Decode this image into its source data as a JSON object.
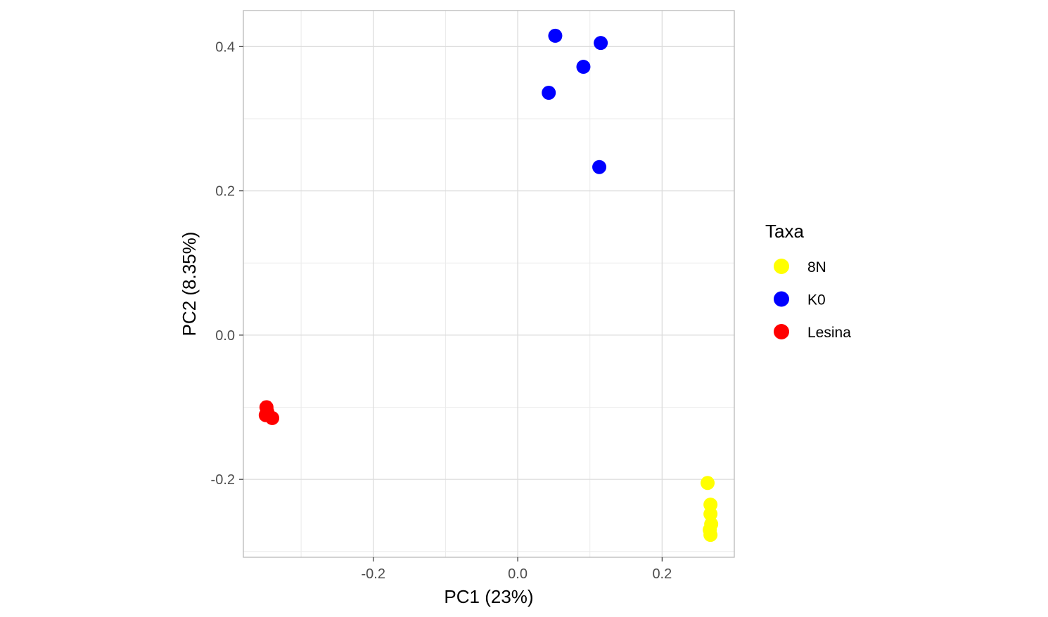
{
  "chart_data": {
    "type": "scatter",
    "title": "",
    "xlabel": "PC1 (23%)",
    "ylabel": "PC2 (8.35%)",
    "xlim": [
      -0.38,
      0.3
    ],
    "ylim": [
      -0.308,
      0.45
    ],
    "x_ticks": [
      -0.2,
      0.0,
      0.2
    ],
    "x_tick_labels": [
      "-0.2",
      "0.0",
      "0.2"
    ],
    "x_minor_ticks": [
      -0.3,
      -0.1,
      0.1
    ],
    "y_ticks": [
      -0.2,
      0.0,
      0.2,
      0.4
    ],
    "y_tick_labels": [
      "-0.2",
      "0.0",
      "0.2",
      "0.4"
    ],
    "y_minor_ticks": [
      -0.3,
      -0.1,
      0.1,
      0.3
    ],
    "grid": true,
    "legend": {
      "title": "Taxa",
      "position": "right"
    },
    "series": [
      {
        "name": "8N",
        "color": "#FFFF00",
        "x": [
          0.263,
          0.267,
          0.267,
          0.268,
          0.266,
          0.267
        ],
        "y": [
          -0.205,
          -0.235,
          -0.248,
          -0.262,
          -0.27,
          -0.277
        ]
      },
      {
        "name": "K0",
        "color": "#0000FF",
        "x": [
          0.052,
          0.115,
          0.091,
          0.043,
          0.113
        ],
        "y": [
          0.415,
          0.405,
          0.372,
          0.336,
          0.233
        ]
      },
      {
        "name": "Lesina",
        "color": "#FF0000",
        "x": [
          -0.348,
          -0.347,
          -0.349,
          -0.34
        ],
        "y": [
          -0.1,
          -0.106,
          -0.111,
          -0.115
        ]
      }
    ]
  }
}
